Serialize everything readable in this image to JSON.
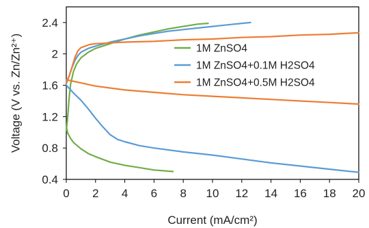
{
  "chart_data": {
    "type": "line",
    "title": "",
    "xlabel": "Current (mA/cm²)",
    "ylabel": "Voltage (V vs. Zn/Zn²⁺)",
    "xlim": [
      0,
      20
    ],
    "ylim": [
      0.4,
      2.6
    ],
    "xticks": [
      0,
      2,
      4,
      6,
      8,
      10,
      12,
      14,
      16,
      18,
      20
    ],
    "yticks": [
      0.4,
      0.8,
      1.2,
      1.6,
      2.0,
      2.4
    ],
    "ytick_labels": [
      "0.4",
      "0.8",
      "1.2",
      "1.6",
      "2",
      "2.4"
    ],
    "grid": false,
    "legend_position": "center-right",
    "series": [
      {
        "name": "1M ZnSO4",
        "color": "#70ad47",
        "branches": [
          {
            "x": [
              0,
              0.1,
              0.2,
              0.3,
              0.5,
              0.7,
              1.0,
              1.5,
              2.0,
              3.0,
              4.0,
              5.0,
              6.0,
              7.0,
              8.0,
              9.0,
              9.7
            ],
            "y": [
              1.02,
              1.2,
              1.45,
              1.62,
              1.78,
              1.87,
              1.95,
              2.02,
              2.07,
              2.13,
              2.19,
              2.24,
              2.28,
              2.32,
              2.35,
              2.38,
              2.39
            ]
          },
          {
            "x": [
              0,
              0.1,
              0.3,
              0.5,
              1.0,
              1.5,
              2.0,
              3.0,
              4.0,
              5.0,
              6.0,
              7.3
            ],
            "y": [
              1.08,
              0.99,
              0.92,
              0.87,
              0.79,
              0.73,
              0.69,
              0.62,
              0.58,
              0.55,
              0.52,
              0.5
            ]
          }
        ]
      },
      {
        "name": "1M ZnSO4+0.1M H2SO4",
        "color": "#5b9bd5",
        "branches": [
          {
            "x": [
              0,
              0.2,
              0.4,
              0.6,
              0.8,
              1.0,
              1.5,
              2.0,
              3.0,
              4.0,
              5.0,
              6.0,
              7.0,
              8.0,
              9.0,
              10.0,
              11.0,
              12.0,
              12.6
            ],
            "y": [
              1.62,
              1.72,
              1.83,
              1.92,
              1.98,
              2.02,
              2.07,
              2.1,
              2.15,
              2.19,
              2.23,
              2.26,
              2.29,
              2.31,
              2.33,
              2.35,
              2.37,
              2.39,
              2.4
            ]
          },
          {
            "x": [
              0,
              0.5,
              1.0,
              1.5,
              2.0,
              2.5,
              3.0,
              3.5,
              4.0,
              5.0,
              6.0,
              8.0,
              10.0,
              12.0,
              14.0,
              16.0,
              18.0,
              20.0
            ],
            "y": [
              1.6,
              1.5,
              1.41,
              1.3,
              1.18,
              1.07,
              0.97,
              0.91,
              0.88,
              0.83,
              0.8,
              0.75,
              0.71,
              0.66,
              0.61,
              0.57,
              0.53,
              0.49
            ]
          }
        ]
      },
      {
        "name": "1M ZnSO4+0.5M H2SO4",
        "color": "#ed7d31",
        "branches": [
          {
            "x": [
              0,
              0.2,
              0.4,
              0.6,
              0.8,
              1.0,
              1.3,
              1.6,
              2.0,
              3.0,
              4.0,
              6.0,
              8.0,
              10.0,
              12.0,
              14.0,
              16.0,
              18.0,
              20.0
            ],
            "y": [
              1.64,
              1.72,
              1.84,
              1.96,
              2.04,
              2.08,
              2.1,
              2.12,
              2.13,
              2.14,
              2.15,
              2.16,
              2.18,
              2.19,
              2.21,
              2.22,
              2.24,
              2.25,
              2.27
            ]
          },
          {
            "x": [
              0,
              2.0,
              4.0,
              6.0,
              8.0,
              10.0,
              12.0,
              14.0,
              16.0,
              18.0,
              20.0
            ],
            "y": [
              1.67,
              1.59,
              1.54,
              1.51,
              1.48,
              1.46,
              1.44,
              1.42,
              1.4,
              1.38,
              1.36
            ]
          }
        ]
      }
    ]
  }
}
